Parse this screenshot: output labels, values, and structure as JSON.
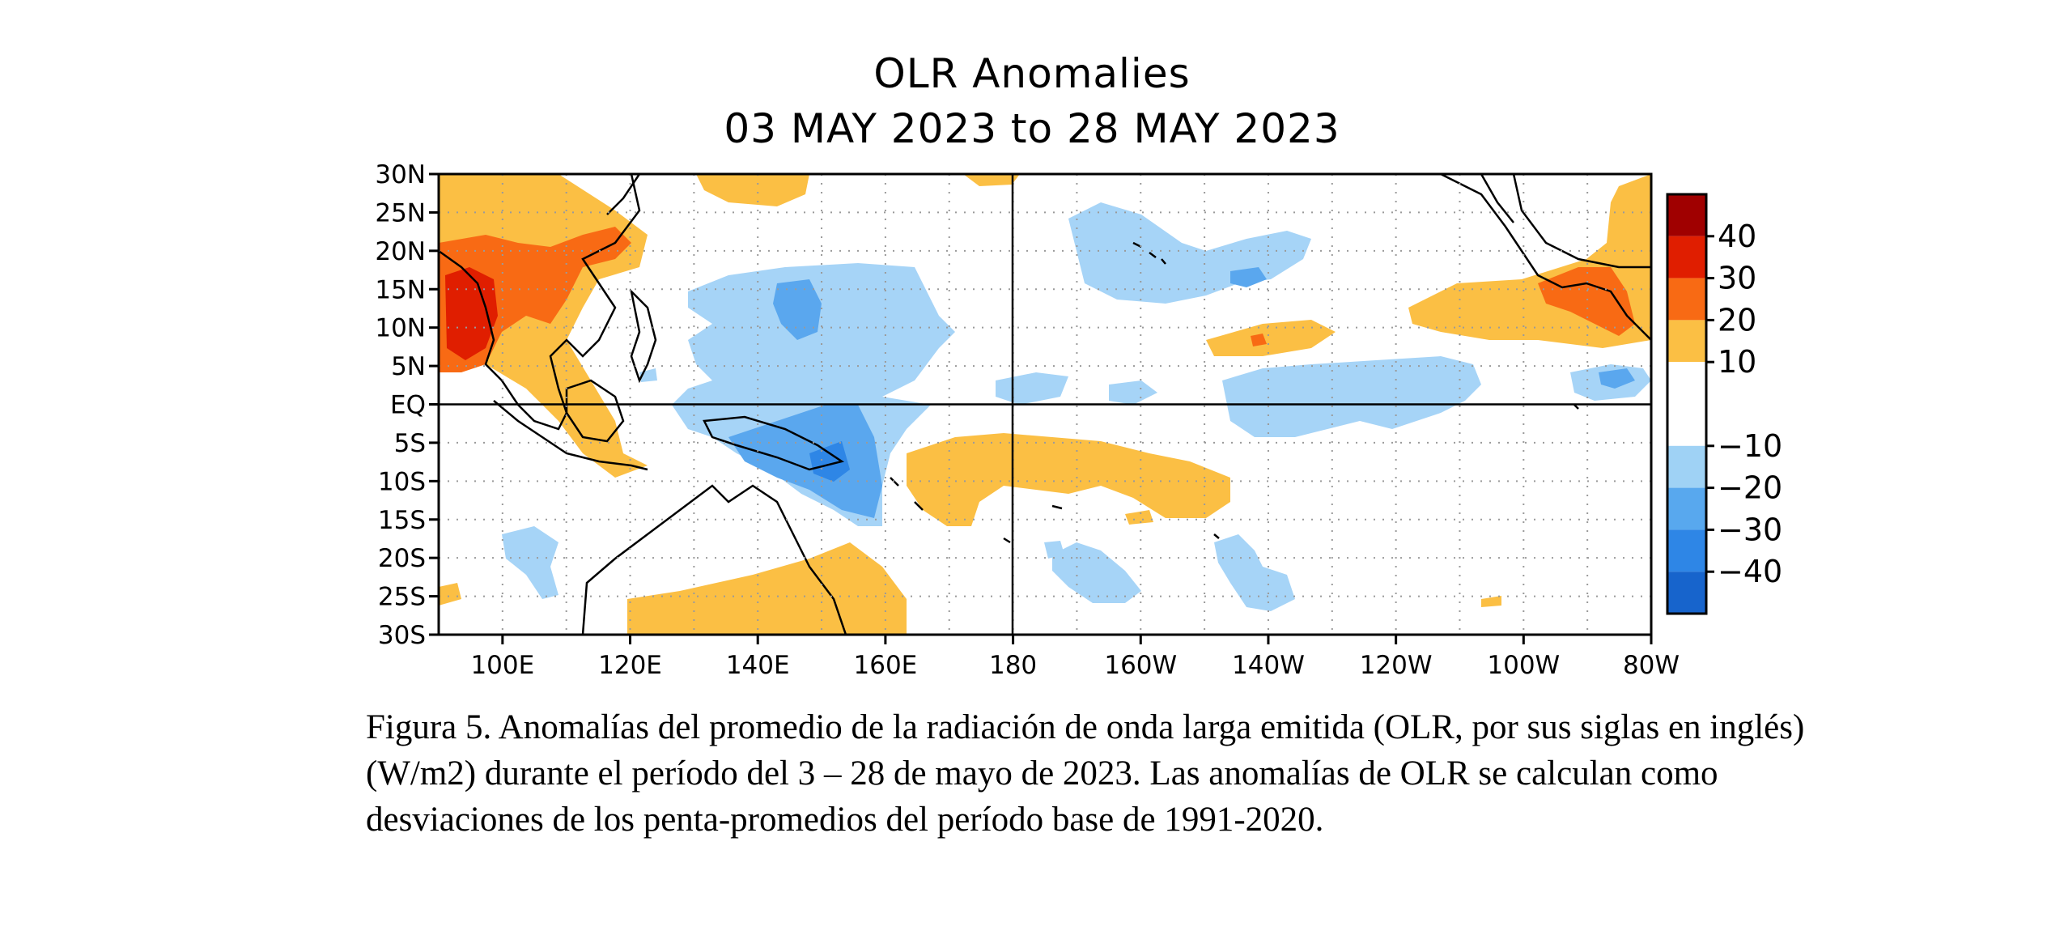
{
  "title": "OLR Anomalies",
  "subtitle": "03 MAY 2023 to 28 MAY 2023",
  "map": {
    "lat_labels": [
      "30N",
      "25N",
      "20N",
      "15N",
      "10N",
      "5N",
      "EQ",
      "5S",
      "10S",
      "15S",
      "20S",
      "25S",
      "30S"
    ],
    "lon_labels": [
      "100E",
      "120E",
      "140E",
      "160E",
      "180",
      "160W",
      "140W",
      "120W",
      "100W",
      "80W"
    ],
    "lat_range": [
      -30,
      30
    ],
    "lon_range_east": [
      90,
      280
    ],
    "grid": "dotted",
    "reference_lines": [
      "EQ",
      "180"
    ]
  },
  "colorbar": {
    "labels": [
      "40",
      "30",
      "20",
      "10",
      "−10",
      "−20",
      "−30",
      "−40"
    ],
    "colors": [
      "#a00000",
      "#e01e00",
      "#f86a14",
      "#fbbf44",
      "#ffffff",
      "#ffffff",
      "#9fd2f5",
      "#58a8ee",
      "#2e86e6",
      "#1764cc"
    ],
    "orientation": "vertical",
    "placement": "right"
  },
  "palette": {
    "pos10": "#fbbf44",
    "pos20": "#f86a14",
    "pos30": "#e01e00",
    "pos40": "#a00000",
    "neg10": "#a6d4f7",
    "neg20": "#5aa7ee",
    "neg30": "#2e86e6",
    "neg40": "#1764cc"
  },
  "caption": "Figura 5. Anomalías del promedio de la radiación de onda larga emitida (OLR, por sus siglas en inglés) (W/m2) durante el período del 3 –  28 de mayo de 2023.  Las anomalías de OLR se calculan como desviaciones de los penta-promedios del período base de 1991-2020."
}
